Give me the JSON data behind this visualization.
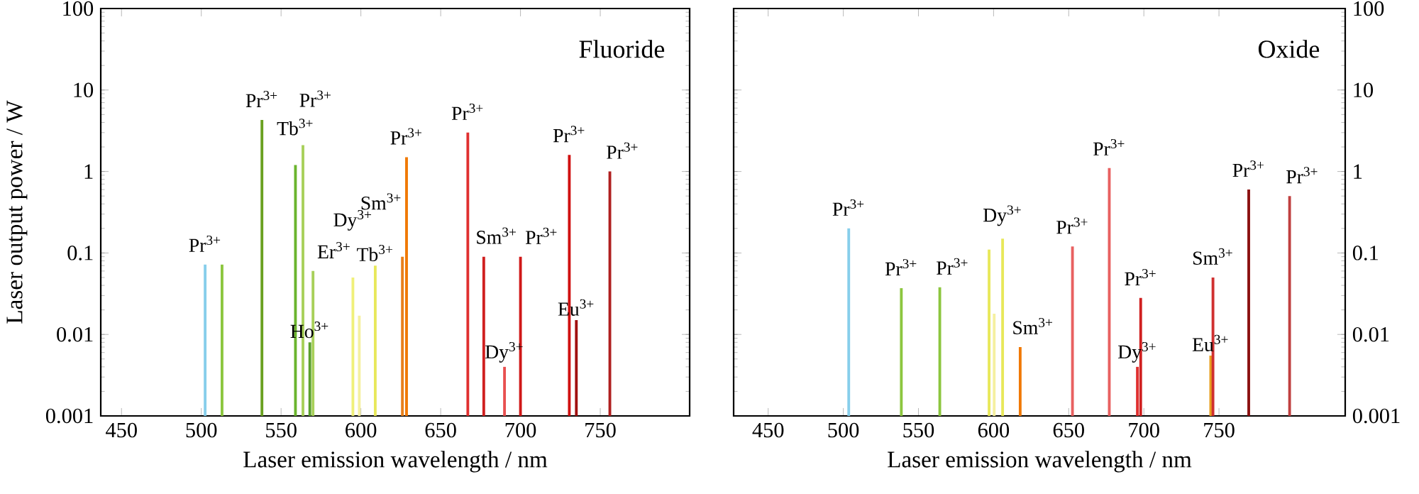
{
  "chart_data": [
    {
      "type": "bar",
      "title": "Fluoride",
      "xlabel": "Laser emission wavelength / nm",
      "ylabel": "Laser output power / W",
      "x": [
        502.4,
        513,
        538,
        559,
        563.7,
        568,
        570,
        595,
        599,
        609,
        626,
        628.6,
        667,
        677,
        690,
        700,
        730.6,
        735,
        756
      ],
      "values": [
        0.072,
        0.072,
        4.3,
        1.2,
        2.1,
        0.008,
        0.06,
        0.05,
        0.017,
        0.07,
        0.09,
        1.5,
        3,
        0.09,
        0.004,
        0.09,
        1.6,
        0.015,
        1
      ],
      "colors": [
        "#87ceeb",
        "#8cc63f",
        "#6aa121",
        "#6ab42d",
        "#a8d05a",
        "#5aa02c",
        "#a8d05a",
        "#f0f07a",
        "#f5f0a0",
        "#e8e85a",
        "#e8801c",
        "#f07800",
        "#e03030",
        "#d02020",
        "#e85050",
        "#d01818",
        "#d01010",
        "#a01010",
        "#b02020"
      ],
      "xlim": [
        437,
        806
      ],
      "xticks": [
        450,
        500,
        550,
        600,
        650,
        700,
        750
      ],
      "ylim": [
        0.001,
        100
      ],
      "yticks": [
        0.001,
        0.01,
        0.1,
        1,
        10,
        100
      ],
      "log": "y",
      "annotations": [
        {
          "text": "Pr$^{3+}$",
          "x": 502.4,
          "y": 0.072
        },
        {
          "text": "Pr$^{3+}$",
          "x": 538,
          "y": 4.3
        },
        {
          "text": "Tb$^{3+}$",
          "x": 559,
          "y": 1.2
        },
        {
          "text": "Pr$^{3+}$",
          "x": 563.7,
          "y": 2.1
        },
        {
          "text": "Ho$^{3+}$",
          "x": 568,
          "y": 0.008
        },
        {
          "text": "Er$^{3+}$",
          "x": 570,
          "y": 0.06
        },
        {
          "text": "Dy$^{3+}$",
          "x": 595,
          "y": 0.05
        },
        {
          "text": "Tb$^{3+}$",
          "x": 609,
          "y": 0.07
        },
        {
          "text": "Sm$^{3+}$",
          "x": 626,
          "y": 0.09
        },
        {
          "text": "Pr$^{3+}$",
          "x": 628.6,
          "y": 1.5
        },
        {
          "text": "Pr$^{3+}$",
          "x": 667,
          "y": 3
        },
        {
          "text": "Sm$^{3+}$",
          "x": 677,
          "y": 0.09
        },
        {
          "text": "Dy$^{3+}$",
          "x": 690,
          "y": 0.004
        },
        {
          "text": "Pr$^{3+}$",
          "x": 700,
          "y": 0.09
        },
        {
          "text": "Pr$^{3+}$",
          "x": 730.6,
          "y": 1.6
        },
        {
          "text": "Eu$^{3+}$",
          "x": 735,
          "y": 0.015
        },
        {
          "text": "Pr$^{3+}$",
          "x": 756,
          "y": 1
        }
      ]
    },
    {
      "type": "bar",
      "title": "Oxide",
      "xlabel": "Laser emission wavelength / nm",
      "x": [
        503.6,
        538.6,
        564.2,
        597,
        600.4,
        606,
        617.7,
        652.5,
        677,
        695.7,
        697.9,
        744.5,
        746,
        769.8,
        797
      ],
      "values": [
        0.2,
        0.037,
        0.038,
        0.11,
        0.018,
        0.15,
        0.007,
        0.12,
        1.1,
        0.004,
        0.028,
        0.0055,
        0.05,
        0.6,
        0.5
      ],
      "colors": [
        "#87ceeb",
        "#8cc63f",
        "#8cc63f",
        "#e8e85a",
        "#f5f0a0",
        "#e8e85a",
        "#f07800",
        "#e86060",
        "#e86060",
        "#e03030",
        "#d02020",
        "#e8a020",
        "#d03030",
        "#8b1010",
        "#c04040"
      ],
      "xlim": [
        427,
        834
      ],
      "xticks": [
        450,
        500,
        550,
        600,
        650,
        700,
        750
      ],
      "ylim": [
        0.001,
        100
      ],
      "yticks": [
        0.001,
        0.01,
        0.1,
        1,
        10,
        100
      ],
      "log": "y",
      "annotations": [
        {
          "text": "Pr$^{3+}$",
          "x": 503.6,
          "y": 0.2
        },
        {
          "text": "Pr$^{3+}$",
          "x": 538.6,
          "y": 0.037
        },
        {
          "text": "Pr$^{3+}$",
          "x": 564.2,
          "y": 0.038
        },
        {
          "text": "Dy$^{3+}$",
          "x": 606,
          "y": 0.15
        },
        {
          "text": "Sm$^{3+}$",
          "x": 617.7,
          "y": 0.007
        },
        {
          "text": "Pr$^{3+}$",
          "x": 652.5,
          "y": 0.12
        },
        {
          "text": "Pr$^{3+}$",
          "x": 677,
          "y": 1.1
        },
        {
          "text": "Dy$^{3+}$",
          "x": 695.7,
          "y": 0.004
        },
        {
          "text": "Pr$^{3+}$",
          "x": 697.9,
          "y": 0.028
        },
        {
          "text": "Eu$^{3+}$",
          "x": 744.5,
          "y": 0.0055
        },
        {
          "text": "Sm$^{3+}$",
          "x": 746,
          "y": 0.05
        },
        {
          "text": "Pr$^{3+}$",
          "x": 769.8,
          "y": 0.6
        },
        {
          "text": "Pr$^{3+}$",
          "x": 797,
          "y": 0.5
        }
      ]
    }
  ]
}
